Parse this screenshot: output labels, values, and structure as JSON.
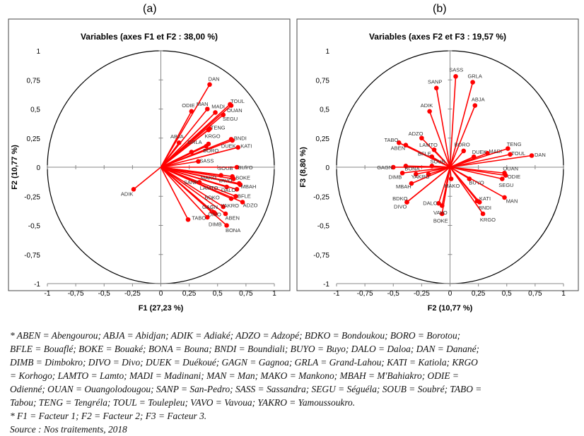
{
  "panel_labels": [
    "(a)",
    "(b)"
  ],
  "chart_data": [
    {
      "type": "scatter",
      "subtype": "correlation-circle",
      "title": "Variables (axes F1 et F2 : 38,00 %)",
      "xlabel": "F1 (27,23 %)",
      "ylabel": "F2 (10,77 %)",
      "xlim": [
        -1,
        1
      ],
      "ylim": [
        -1,
        1
      ],
      "ticks": [
        "-1",
        "-0,75",
        "-0,5",
        "-0,25",
        "0",
        "0,25",
        "0,5",
        "0,75",
        "1"
      ],
      "ytick_labels": [
        "1",
        "0,75",
        "0,5",
        "0,25",
        "0",
        "-0,25",
        "-0,5",
        "-0,75",
        "-1"
      ],
      "grid": false,
      "color": "#ff0000",
      "points": [
        {
          "label": "DAN",
          "x": 0.43,
          "y": 0.71
        },
        {
          "label": "ODIE",
          "x": 0.27,
          "y": 0.48
        },
        {
          "label": "MAN",
          "x": 0.41,
          "y": 0.5
        },
        {
          "label": "MADI",
          "x": 0.48,
          "y": 0.47
        },
        {
          "label": "OUAN",
          "x": 0.61,
          "y": 0.54
        },
        {
          "label": "TOUL",
          "x": 0.62,
          "y": 0.53
        },
        {
          "label": "SEGU",
          "x": 0.55,
          "y": 0.45
        },
        {
          "label": "TENG",
          "x": 0.43,
          "y": 0.33
        },
        {
          "label": "KRGO",
          "x": 0.42,
          "y": 0.32
        },
        {
          "label": "ABJA",
          "x": 0.16,
          "y": 0.21
        },
        {
          "label": "BORO",
          "x": 0.42,
          "y": 0.2
        },
        {
          "label": "GRLA",
          "x": 0.4,
          "y": 0.18
        },
        {
          "label": "DUEK",
          "x": 0.62,
          "y": 0.24
        },
        {
          "label": "BNDI",
          "x": 0.63,
          "y": 0.23
        },
        {
          "label": "KATI",
          "x": 0.68,
          "y": 0.17
        },
        {
          "label": "SASS",
          "x": 0.33,
          "y": 0.05
        },
        {
          "label": "SANP",
          "x": 0.34,
          "y": -0.13
        },
        {
          "label": "BUYO",
          "x": 0.67,
          "y": 0.0
        },
        {
          "label": "MAKO",
          "x": 0.53,
          "y": -0.07
        },
        {
          "label": "VAVO",
          "x": 0.64,
          "y": -0.1
        },
        {
          "label": "BOKE",
          "x": 0.69,
          "y": -0.14
        },
        {
          "label": "DALO",
          "x": 0.67,
          "y": -0.19
        },
        {
          "label": "LAMTO",
          "x": 0.58,
          "y": -0.17
        },
        {
          "label": "BFLE",
          "x": 0.66,
          "y": -0.25
        },
        {
          "label": "MBAH",
          "x": 0.7,
          "y": -0.15
        },
        {
          "label": "SOUB",
          "x": 0.63,
          "y": -0.08
        },
        {
          "label": "ADZO",
          "x": 0.72,
          "y": -0.3
        },
        {
          "label": "YAKRO",
          "x": 0.62,
          "y": -0.27
        },
        {
          "label": "DIVO",
          "x": 0.55,
          "y": -0.34
        },
        {
          "label": "BDKO",
          "x": 0.45,
          "y": -0.38
        },
        {
          "label": "ABEN",
          "x": 0.57,
          "y": -0.4
        },
        {
          "label": "GAGN",
          "x": 0.47,
          "y": -0.39
        },
        {
          "label": "BONA",
          "x": 0.58,
          "y": -0.5
        },
        {
          "label": "DIMB",
          "x": 0.48,
          "y": -0.4
        },
        {
          "label": "TABO",
          "x": 0.41,
          "y": -0.43
        },
        {
          "label": "ADIK",
          "x": -0.24,
          "y": -0.19
        },
        {
          "label": "",
          "x": 0.24,
          "y": -0.45
        },
        {
          "label": "",
          "x": 0.27,
          "y": 0.13
        }
      ]
    },
    {
      "type": "scatter",
      "subtype": "correlation-circle",
      "title": "Variables (axes F2 et F3 : 19,57 %)",
      "xlabel": "F2 (10,77 %)",
      "ylabel": "F3 (8,80 %)",
      "xlim": [
        -1,
        1
      ],
      "ylim": [
        -1,
        1
      ],
      "ticks": [
        "-1",
        "-0,75",
        "-0,5",
        "-0,25",
        "0",
        "0,25",
        "0,5",
        "0,75",
        "1"
      ],
      "ytick_labels": [
        "1",
        "0,75",
        "0,5",
        "0,25",
        "0",
        "-0,25",
        "-0,5",
        "-0,75",
        "-1"
      ],
      "grid": false,
      "color": "#ff0000",
      "points": [
        {
          "label": "SASS",
          "x": 0.05,
          "y": 0.78
        },
        {
          "label": "GRLA",
          "x": 0.2,
          "y": 0.73
        },
        {
          "label": "ABJA",
          "x": 0.22,
          "y": 0.53
        },
        {
          "label": "SANP",
          "x": -0.12,
          "y": 0.68
        },
        {
          "label": "ADIK",
          "x": -0.18,
          "y": 0.48
        },
        {
          "label": "ADZO",
          "x": -0.25,
          "y": 0.25
        },
        {
          "label": "TABO",
          "x": -0.45,
          "y": 0.21
        },
        {
          "label": "ABEN",
          "x": -0.39,
          "y": 0.19
        },
        {
          "label": "LAMTO",
          "x": -0.14,
          "y": 0.15
        },
        {
          "label": "BFLE",
          "x": -0.16,
          "y": 0.09
        },
        {
          "label": "SOUB",
          "x": -0.16,
          "y": 0.01
        },
        {
          "label": "GAGN",
          "x": -0.5,
          "y": 0.0
        },
        {
          "label": "",
          "x": -0.39,
          "y": 0.01
        },
        {
          "label": "BORO",
          "x": 0.12,
          "y": 0.14
        },
        {
          "label": "DUEK",
          "x": 0.21,
          "y": 0.09
        },
        {
          "label": "TENG",
          "x": 0.51,
          "y": 0.16
        },
        {
          "label": "MADI",
          "x": 0.33,
          "y": 0.12
        },
        {
          "label": "TOUL",
          "x": 0.53,
          "y": 0.11
        },
        {
          "label": "DAN",
          "x": 0.72,
          "y": 0.1
        },
        {
          "label": "DIMB",
          "x": -0.42,
          "y": -0.05
        },
        {
          "label": "BONA",
          "x": -0.3,
          "y": -0.06
        },
        {
          "label": "YAKRO",
          "x": -0.19,
          "y": -0.06
        },
        {
          "label": "MBAH",
          "x": -0.34,
          "y": -0.14
        },
        {
          "label": "DIVO",
          "x": -0.38,
          "y": -0.3
        },
        {
          "label": "BDKO",
          "x": -0.38,
          "y": -0.3
        },
        {
          "label": "MAKO",
          "x": 0.01,
          "y": -0.1
        },
        {
          "label": "DALO",
          "x": -0.1,
          "y": -0.31
        },
        {
          "label": "VAVO",
          "x": -0.07,
          "y": -0.33
        },
        {
          "label": "BOKE",
          "x": -0.07,
          "y": -0.4
        },
        {
          "label": "BUYO",
          "x": 0.17,
          "y": -0.1
        },
        {
          "label": "KATI",
          "x": 0.24,
          "y": -0.29
        },
        {
          "label": "BNDI",
          "x": 0.26,
          "y": -0.3
        },
        {
          "label": "KRGO",
          "x": 0.29,
          "y": -0.4
        },
        {
          "label": "OUAN",
          "x": 0.48,
          "y": -0.05
        },
        {
          "label": "ODIE",
          "x": 0.49,
          "y": -0.07
        },
        {
          "label": "SEGU",
          "x": 0.46,
          "y": -0.1
        },
        {
          "label": "MAN",
          "x": 0.48,
          "y": -0.26
        }
      ]
    }
  ],
  "caption": [
    "* ABEN = Abengourou; ABJA = Abidjan; ADIK = Adiaké; ADZO = Adzopé; BDKO = Bondoukou; BORO = Borotou;",
    "BFLE = Bouaflé; BOKE = Bouaké; BONA = Bouna; BNDI = Boundiali; BUYO = Buyo; DALO = Daloa; DAN = Danané;",
    "DIMB = Dimbokro; DIVO = Divo; DUEK = Duékoué; GAGN = Gagnoa; GRLA = Grand-Lahou; KATI = Katiola; KRGO",
    "= Korhogo; LAMTO = Lamto; MADI = Madinani; MAN = Man; MAKO = Mankono; MBAH = M'Bahiakro; ODIE =",
    "Odienné; OUAN = Ouangolodougou; SANP = San-Pedro; SASS = Sassandra; SEGU = Séguéla; SOUB = Soubré; TABO =",
    "Tabou; TENG = Tengréla; TOUL = Toulepleu; VAVO = Vavoua; YAKRO = Yamoussoukro.",
    "* F1 = Facteur 1; F2 = Facteur 2; F3 = Facteur 3.",
    "Source : Nos traitements, 2018"
  ]
}
